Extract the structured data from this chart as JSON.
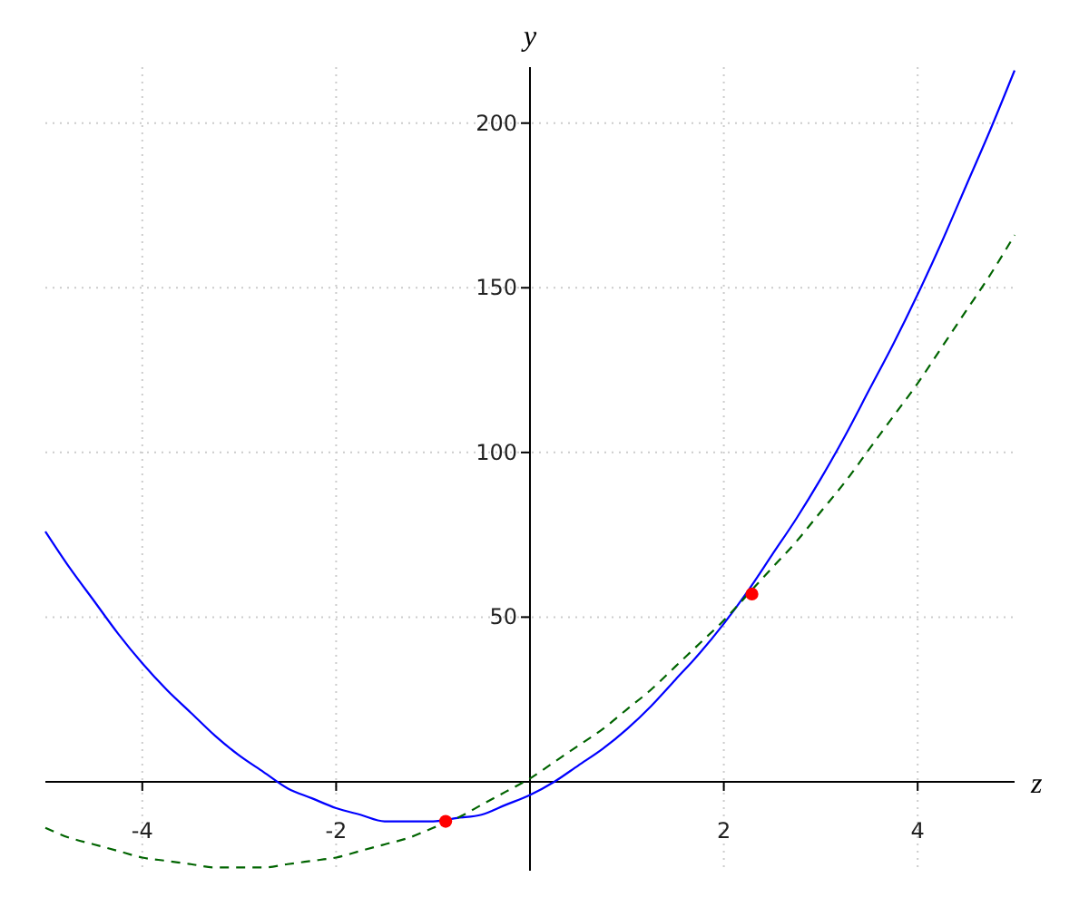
{
  "chart_data": {
    "type": "line",
    "xlabel": "z",
    "ylabel": "y",
    "xlim": [
      -5,
      5
    ],
    "ylim": [
      -27,
      217
    ],
    "xticks": [
      -4,
      -2,
      2,
      4
    ],
    "yticks": [
      50,
      100,
      150,
      200
    ],
    "grid": true,
    "marker": "none",
    "x": [
      -5,
      -4.75,
      -4.5,
      -4.25,
      -4,
      -3.75,
      -3.5,
      -3.25,
      -3,
      -2.75,
      -2.5,
      -2.25,
      -2,
      -1.75,
      -1.5,
      -1.25,
      -1,
      -0.75,
      -0.5,
      -0.25,
      0,
      0.25,
      0.5,
      0.75,
      1,
      1.25,
      1.5,
      1.75,
      2,
      2.25,
      2.5,
      2.75,
      3,
      3.25,
      3.5,
      3.75,
      4,
      4.25,
      4.5,
      4.75,
      5
    ],
    "series": [
      {
        "color": "#0000ff",
        "line_style": "solid",
        "values": [
          76,
          65,
          55,
          45,
          36,
          28,
          21,
          14,
          8,
          3,
          -2,
          -5,
          -8,
          -10,
          -12,
          -12,
          -12,
          -11,
          -10,
          -7,
          -4,
          0,
          5,
          10,
          16,
          23,
          31,
          39,
          48,
          58,
          69,
          80,
          92,
          105,
          119,
          133,
          148,
          164,
          181,
          198,
          216
        ]
      },
      {
        "color": "#006400",
        "line_style": "dashed",
        "values": [
          -14,
          -17,
          -19,
          -21,
          -23,
          -24,
          -25,
          -26,
          -26,
          -26,
          -25,
          -24,
          -23,
          -21,
          -19,
          -17,
          -14,
          -11,
          -7,
          -3,
          1,
          6,
          11,
          16,
          22,
          28,
          35,
          42,
          49,
          57,
          65,
          73,
          82,
          91,
          101,
          111,
          121,
          132,
          143,
          154,
          166
        ]
      },
      {
        "type": "scatter",
        "marker": "circle",
        "color": "#ff0000",
        "x": [
          -0.87,
          2.29
        ],
        "values": [
          -12,
          57
        ]
      }
    ]
  }
}
